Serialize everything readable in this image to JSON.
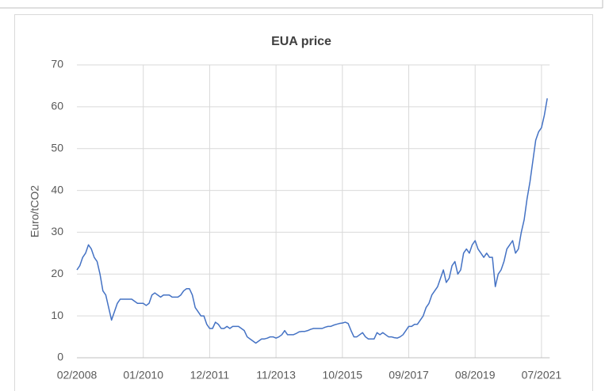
{
  "chart_data": {
    "type": "line",
    "title": "EUA price",
    "y_label": "Euro/tCO2",
    "categories": [
      "02/2008",
      null,
      null,
      null,
      null,
      null,
      null,
      null,
      null,
      null,
      null,
      null,
      null,
      null,
      null,
      null,
      null,
      null,
      null,
      null,
      null,
      null,
      null,
      "01/2010",
      null,
      null,
      null,
      null,
      null,
      null,
      null,
      null,
      null,
      null,
      null,
      null,
      null,
      null,
      null,
      null,
      null,
      null,
      null,
      null,
      null,
      null,
      "12/2011",
      null,
      null,
      null,
      null,
      null,
      null,
      null,
      null,
      null,
      null,
      null,
      null,
      null,
      null,
      null,
      null,
      null,
      null,
      null,
      null,
      null,
      null,
      "11/2013",
      null,
      null,
      null,
      null,
      null,
      null,
      null,
      null,
      null,
      null,
      null,
      null,
      null,
      null,
      null,
      null,
      null,
      null,
      null,
      null,
      null,
      null,
      "10/2015",
      null,
      null,
      null,
      null,
      null,
      null,
      null,
      null,
      null,
      null,
      null,
      null,
      null,
      null,
      null,
      null,
      null,
      null,
      null,
      null,
      null,
      null,
      "09/2017",
      null,
      null,
      null,
      null,
      null,
      null,
      null,
      null,
      null,
      null,
      null,
      null,
      null,
      null,
      null,
      null,
      null,
      null,
      null,
      null,
      null,
      null,
      "08/2019",
      null,
      null,
      null,
      null,
      null,
      null,
      null,
      null,
      null,
      null,
      null,
      null,
      null,
      null,
      null,
      null,
      null,
      null,
      null,
      null,
      null,
      null,
      "07/2021",
      null,
      null
    ],
    "series": [
      {
        "name": "EUA price",
        "color": "#4472c4",
        "values": [
          21,
          22,
          24,
          25,
          27,
          26,
          24,
          23,
          20,
          16,
          15,
          12,
          9,
          11,
          13,
          14,
          14,
          14,
          14,
          14,
          13.5,
          13,
          13,
          13,
          12.5,
          13,
          15,
          15.5,
          15,
          14.5,
          15,
          15,
          15,
          14.5,
          14.5,
          14.5,
          15,
          16,
          16.5,
          16.5,
          15,
          12,
          11,
          10,
          10,
          8,
          7,
          7,
          8.5,
          8,
          7,
          7,
          7.5,
          7,
          7.5,
          7.5,
          7.5,
          7,
          6.5,
          5,
          4.5,
          4,
          3.5,
          4,
          4.5,
          4.5,
          4.7,
          5,
          5,
          4.7,
          5,
          5.5,
          6.5,
          5.5,
          5.5,
          5.5,
          5.8,
          6.2,
          6.3,
          6.3,
          6.5,
          6.8,
          7,
          7,
          7,
          7,
          7.3,
          7.5,
          7.5,
          7.8,
          8,
          8.2,
          8.3,
          8.5,
          8.2,
          6.5,
          5,
          5,
          5.5,
          6,
          5,
          4.5,
          4.5,
          4.5,
          6,
          5.5,
          6,
          5.5,
          5,
          5,
          4.8,
          4.7,
          5,
          5.5,
          6.5,
          7.5,
          7.5,
          8,
          8,
          9,
          10,
          12,
          13,
          15,
          16,
          17,
          19,
          21,
          18,
          19,
          22,
          23,
          20,
          21,
          25,
          26,
          25,
          27,
          28,
          26,
          25,
          24,
          25,
          24,
          24,
          17,
          20,
          21,
          23,
          26,
          27,
          28,
          25,
          26,
          30,
          33,
          38,
          42,
          47,
          52,
          54,
          55,
          58,
          62
        ]
      }
    ],
    "ylim": [
      0,
      70
    ],
    "yticks": [
      0,
      10,
      20,
      30,
      40,
      50,
      60,
      70
    ],
    "grid": true
  }
}
